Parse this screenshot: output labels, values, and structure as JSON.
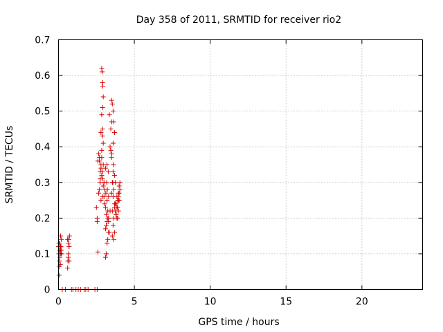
{
  "chart_data": {
    "type": "scatter",
    "title": "Day 358 of 2011, SRMTID for receiver rio2",
    "xlabel": "GPS time / hours",
    "ylabel": "SRMTID / TECUs",
    "xlim": [
      0,
      24
    ],
    "ylim": [
      0,
      0.7
    ],
    "xticks": [
      "0",
      "5",
      "10",
      "15",
      "20"
    ],
    "yticks": [
      "0",
      "0.1",
      "0.2",
      "0.3",
      "0.4",
      "0.5",
      "0.6",
      "0.7"
    ],
    "grid": true,
    "legend": "none",
    "marker": "plus",
    "color": "#d40000",
    "series": [
      {
        "x": [
          0.0,
          0.02,
          0.04,
          0.06,
          0.08,
          0.1,
          0.12,
          0.14,
          0.16,
          0.18,
          0.2,
          0.05,
          0.1,
          0.15,
          0.03,
          0.08,
          0.13,
          0.18,
          0.07,
          0.12,
          0.6,
          0.62,
          0.65,
          0.68,
          0.7,
          0.72,
          0.66,
          0.64,
          0.7,
          0.6,
          0.25,
          0.45,
          0.85,
          0.95,
          1.15,
          1.3,
          1.45,
          1.7,
          1.8,
          1.95,
          2.4,
          2.55,
          2.5,
          2.55,
          2.6,
          2.65,
          2.7,
          2.75,
          2.8,
          2.85,
          2.9,
          2.95,
          3.0,
          3.05,
          2.6,
          2.7,
          2.8,
          2.9,
          3.0,
          2.55,
          2.65,
          2.75,
          2.85,
          2.95,
          3.05,
          2.7,
          2.8,
          2.9,
          2.75,
          2.85,
          2.95,
          2.8,
          2.9,
          2.85,
          2.88,
          2.9,
          2.92,
          2.95,
          2.9,
          2.85,
          2.9,
          3.1,
          3.15,
          3.2,
          3.25,
          3.3,
          3.1,
          3.2,
          3.3,
          3.15,
          3.25,
          3.1,
          3.2,
          3.3,
          3.12,
          3.22,
          3.18,
          3.28,
          3.1,
          3.2,
          3.3,
          3.15,
          3.25,
          3.35,
          3.4,
          3.45,
          3.5,
          3.35,
          3.45,
          3.4,
          3.5,
          3.55,
          3.6,
          3.65,
          3.7,
          3.5,
          3.6,
          3.7,
          3.55,
          3.65,
          3.5,
          3.6,
          3.7,
          3.55,
          3.65,
          3.6,
          3.7,
          3.55,
          3.65,
          3.6,
          3.5,
          3.62,
          3.58,
          3.7,
          3.75,
          3.8,
          3.85,
          3.9,
          3.95,
          4.0,
          4.05,
          3.75,
          3.85,
          3.95,
          3.8,
          3.9,
          4.0,
          3.75,
          3.85,
          3.95,
          3.8,
          3.9,
          4.0,
          4.05,
          3.95
        ],
        "y": [
          0.12,
          0.1,
          0.04,
          0.08,
          0.13,
          0.11,
          0.07,
          0.15,
          0.12,
          0.11,
          0.1,
          0.065,
          0.12,
          0.1,
          0.13,
          0.09,
          0.11,
          0.14,
          0.11,
          0.12,
          0.06,
          0.08,
          0.1,
          0.14,
          0.12,
          0.15,
          0.13,
          0.09,
          0.08,
          0.14,
          0.0,
          0.0,
          0.0,
          0.0,
          0.0,
          0.0,
          0.0,
          0.0,
          0.0,
          0.0,
          0.0,
          0.0,
          0.23,
          0.19,
          0.105,
          0.38,
          0.36,
          0.33,
          0.35,
          0.32,
          0.31,
          0.29,
          0.26,
          0.24,
          0.36,
          0.37,
          0.34,
          0.33,
          0.3,
          0.2,
          0.27,
          0.31,
          0.37,
          0.35,
          0.28,
          0.28,
          0.25,
          0.26,
          0.3,
          0.39,
          0.41,
          0.44,
          0.43,
          0.62,
          0.61,
          0.58,
          0.57,
          0.54,
          0.51,
          0.49,
          0.45,
          0.09,
          0.1,
          0.13,
          0.14,
          0.16,
          0.17,
          0.19,
          0.2,
          0.21,
          0.22,
          0.23,
          0.25,
          0.26,
          0.27,
          0.28,
          0.3,
          0.33,
          0.34,
          0.35,
          0.19,
          0.18,
          0.2,
          0.16,
          0.4,
          0.45,
          0.47,
          0.49,
          0.39,
          0.22,
          0.53,
          0.52,
          0.5,
          0.47,
          0.44,
          0.38,
          0.33,
          0.32,
          0.3,
          0.28,
          0.27,
          0.26,
          0.24,
          0.22,
          0.2,
          0.18,
          0.16,
          0.15,
          0.14,
          0.41,
          0.37,
          0.35,
          0.3,
          0.23,
          0.22,
          0.21,
          0.2,
          0.25,
          0.26,
          0.27,
          0.28,
          0.24,
          0.23,
          0.22,
          0.21,
          0.2,
          0.29,
          0.3,
          0.26,
          0.25,
          0.24,
          0.23,
          0.25,
          0.3,
          0.27
        ]
      }
    ]
  }
}
